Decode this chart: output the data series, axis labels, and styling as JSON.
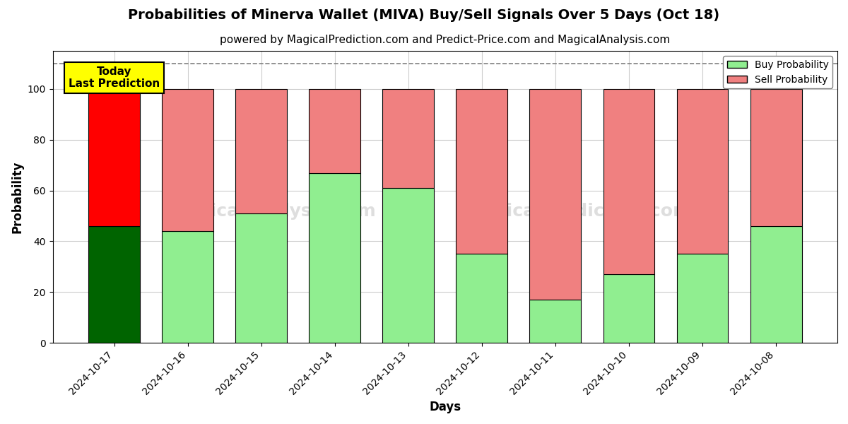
{
  "title": "Probabilities of Minerva Wallet (MIVA) Buy/Sell Signals Over 5 Days (Oct 18)",
  "subtitle": "powered by MagicalPrediction.com and Predict-Price.com and MagicalAnalysis.com",
  "xlabel": "Days",
  "ylabel": "Probability",
  "dates": [
    "2024-10-17",
    "2024-10-16",
    "2024-10-15",
    "2024-10-14",
    "2024-10-13",
    "2024-10-12",
    "2024-10-11",
    "2024-10-10",
    "2024-10-09",
    "2024-10-08"
  ],
  "buy_probs": [
    46,
    44,
    51,
    67,
    61,
    35,
    17,
    27,
    35,
    46
  ],
  "sell_probs": [
    54,
    56,
    49,
    33,
    39,
    65,
    83,
    73,
    65,
    54
  ],
  "today_bar_color_buy": "#006400",
  "today_bar_color_sell": "#FF0000",
  "normal_bar_color_buy": "#90EE90",
  "normal_bar_color_sell": "#F08080",
  "bar_edge_color": "black",
  "bar_edge_width": 0.8,
  "dashed_line_y": 110,
  "ylim": [
    0,
    115
  ],
  "yticks": [
    0,
    20,
    40,
    60,
    80,
    100
  ],
  "grid_color": "#cccccc",
  "legend_buy_label": "Buy Probability",
  "legend_sell_label": "Sell Probability",
  "today_label": "Today\nLast Prediction",
  "today_label_bg": "#FFFF00",
  "title_fontsize": 14,
  "subtitle_fontsize": 11,
  "axis_label_fontsize": 12,
  "tick_fontsize": 10,
  "bar_width": 0.7,
  "fig_facecolor": "#ffffff",
  "ax_facecolor": "#ffffff"
}
